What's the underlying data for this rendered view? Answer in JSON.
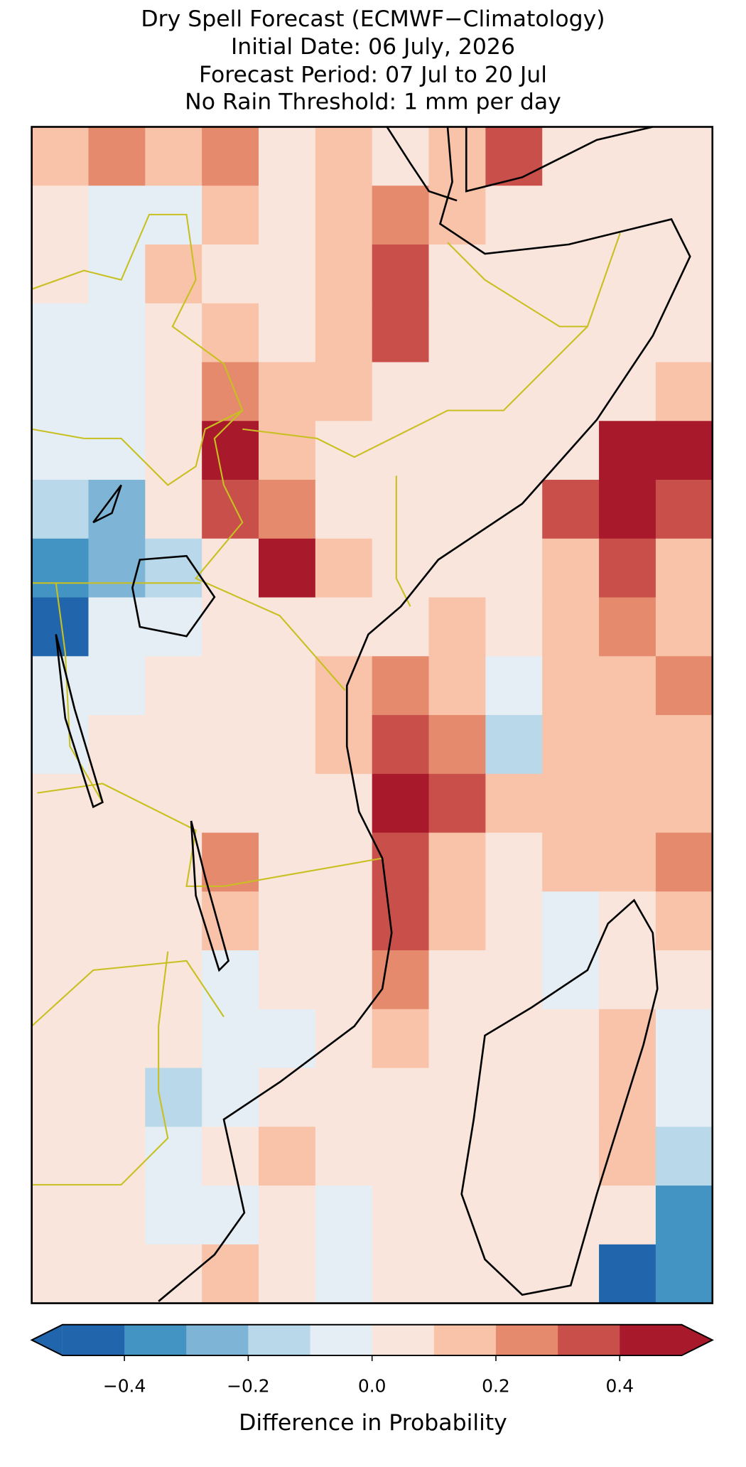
{
  "title_lines": [
    "Dry Spell Forecast (ECMWF−Climatology)",
    "Initial Date: 06 July, 2026",
    "Forecast Period: 07 Jul to 20 Jul",
    "No Rain Threshold: 1 mm per day"
  ],
  "map": {
    "grid": [
      [
        0.15,
        0.25,
        0.15,
        0.25,
        0.05,
        0.15,
        0.05,
        0.15,
        0.35,
        0.05,
        0.05,
        0.05
      ],
      [
        0.05,
        -0.05,
        -0.05,
        0.15,
        0.05,
        0.15,
        0.25,
        0.15,
        0.05,
        0.05,
        0.05,
        0.05
      ],
      [
        0.05,
        -0.05,
        0.15,
        0.05,
        0.05,
        0.15,
        0.35,
        0.05,
        0.05,
        0.05,
        0.05,
        0.05
      ],
      [
        -0.05,
        -0.05,
        0.05,
        0.15,
        0.05,
        0.15,
        0.35,
        0.05,
        0.05,
        0.05,
        0.05,
        0.05
      ],
      [
        -0.05,
        -0.05,
        0.05,
        0.25,
        0.15,
        0.15,
        0.05,
        0.05,
        0.05,
        0.05,
        0.05,
        0.15
      ],
      [
        -0.05,
        -0.05,
        0.05,
        0.45,
        0.15,
        0.05,
        0.05,
        0.05,
        0.05,
        0.05,
        0.45,
        0.45
      ],
      [
        -0.15,
        -0.25,
        0.05,
        0.35,
        0.25,
        0.05,
        0.05,
        0.05,
        0.05,
        0.35,
        0.45,
        0.35
      ],
      [
        -0.35,
        -0.25,
        -0.15,
        0.05,
        0.45,
        0.15,
        0.05,
        0.05,
        0.05,
        0.15,
        0.35,
        0.15
      ],
      [
        -0.45,
        -0.05,
        -0.05,
        0.05,
        0.05,
        0.05,
        0.05,
        0.15,
        0.05,
        0.15,
        0.25,
        0.15
      ],
      [
        -0.05,
        -0.05,
        0.05,
        0.05,
        0.05,
        0.15,
        0.25,
        0.15,
        -0.05,
        0.15,
        0.15,
        0.25
      ],
      [
        -0.05,
        0.05,
        0.05,
        0.05,
        0.05,
        0.15,
        0.35,
        0.25,
        -0.15,
        0.15,
        0.15,
        0.15
      ],
      [
        0.05,
        0.05,
        0.05,
        0.05,
        0.05,
        0.05,
        0.45,
        0.35,
        0.15,
        0.15,
        0.15,
        0.15
      ],
      [
        0.05,
        0.05,
        0.05,
        0.25,
        0.05,
        0.05,
        0.35,
        0.15,
        0.05,
        0.15,
        0.15,
        0.25
      ],
      [
        0.05,
        0.05,
        0.05,
        0.15,
        0.05,
        0.05,
        0.35,
        0.15,
        0.05,
        -0.05,
        0.05,
        0.15
      ],
      [
        0.05,
        0.05,
        0.05,
        -0.05,
        0.05,
        0.05,
        0.25,
        0.05,
        0.05,
        -0.05,
        0.05,
        0.05
      ],
      [
        0.05,
        0.05,
        0.05,
        -0.05,
        -0.05,
        0.05,
        0.15,
        0.05,
        0.05,
        0.05,
        0.15,
        -0.05
      ],
      [
        0.05,
        0.05,
        -0.15,
        -0.05,
        0.05,
        0.05,
        0.05,
        0.05,
        0.05,
        0.05,
        0.15,
        -0.05
      ],
      [
        0.05,
        0.05,
        -0.05,
        0.05,
        0.15,
        0.05,
        0.05,
        0.05,
        0.05,
        0.05,
        0.15,
        -0.15
      ],
      [
        0.05,
        0.05,
        -0.05,
        -0.05,
        0.05,
        -0.05,
        0.05,
        0.05,
        0.05,
        0.05,
        0.05,
        -0.35
      ],
      [
        0.05,
        0.05,
        0.05,
        0.15,
        0.05,
        -0.05,
        0.05,
        0.05,
        0.05,
        0.05,
        -0.45,
        -0.35
      ]
    ]
  },
  "colorbar": {
    "label": "Difference in Probability",
    "levels": [
      -0.5,
      -0.4,
      -0.3,
      -0.2,
      -0.1,
      0,
      0.1,
      0.2,
      0.3,
      0.4,
      0.5
    ],
    "colors": [
      "#2166ac",
      "#4393c3",
      "#7eb5d6",
      "#b9d8e9",
      "#e5eef4",
      "#f9e5db",
      "#f8c3a8",
      "#e68a6d",
      "#c9504a",
      "#a9192c"
    ],
    "under_color": "#2166ac",
    "over_color": "#a9192c",
    "ticks": [
      {
        "value": -0.4,
        "label": "−0.4"
      },
      {
        "value": -0.2,
        "label": "−0.2"
      },
      {
        "value": 0,
        "label": "0.0"
      },
      0.2,
      0.4
    ]
  }
}
